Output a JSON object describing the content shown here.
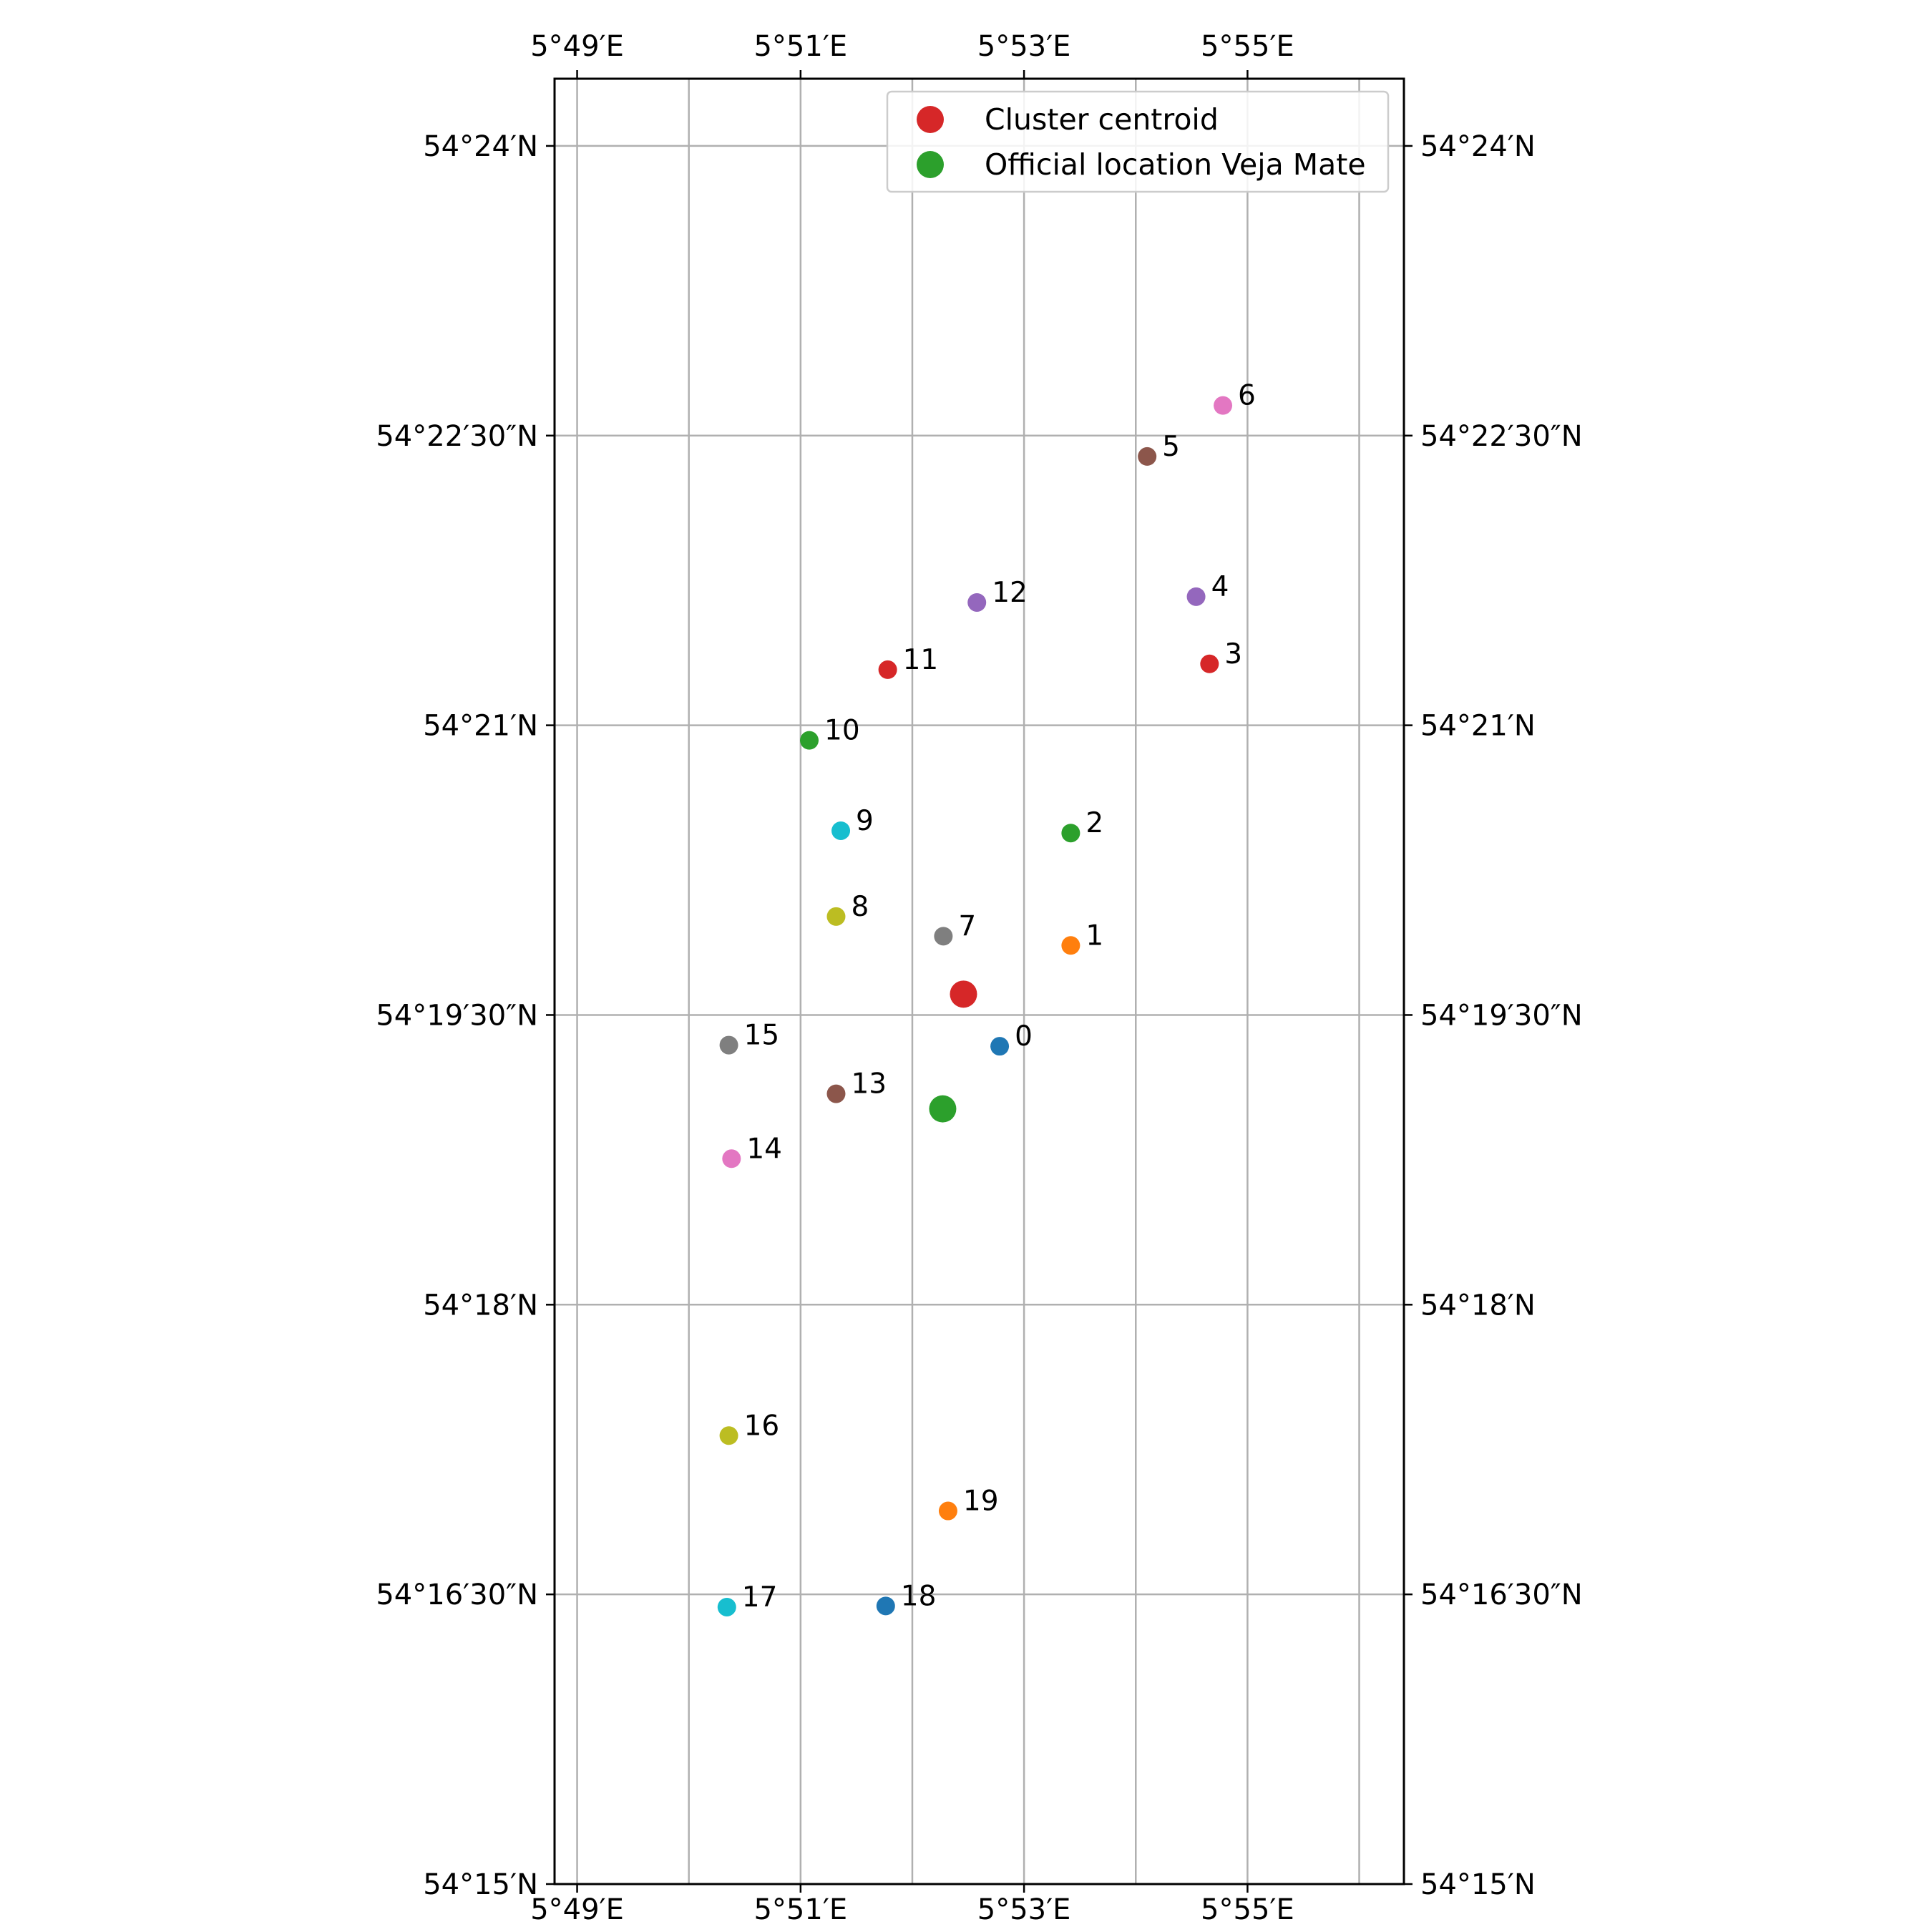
{
  "chart_data": {
    "type": "scatter",
    "x_axis": {
      "label": "",
      "range_deg": [
        5.8133,
        5.94
      ],
      "ticks": [
        {
          "value": 5.816667,
          "label": "5°49′E"
        },
        {
          "value": 5.85,
          "label": "5°51′E"
        },
        {
          "value": 5.883333,
          "label": "5°53′E"
        },
        {
          "value": 5.916667,
          "label": "5°55′E"
        }
      ],
      "minor_gridlines": [
        5.833333,
        5.866667,
        5.9,
        5.933333
      ]
    },
    "y_axis": {
      "label": "",
      "range_deg": [
        54.25,
        54.4058
      ],
      "ticks": [
        {
          "value": 54.25,
          "label": "54°15′N"
        },
        {
          "value": 54.275,
          "label": "54°16′30″N"
        },
        {
          "value": 54.3,
          "label": "54°18′N"
        },
        {
          "value": 54.325,
          "label": "54°19′30″N"
        },
        {
          "value": 54.35,
          "label": "54°21′N"
        },
        {
          "value": 54.375,
          "label": "54°22′30″N"
        },
        {
          "value": 54.4,
          "label": "54°24′N"
        }
      ]
    },
    "grid": true,
    "legend": {
      "position": "top-right",
      "entries": [
        {
          "label": "Cluster centroid",
          "color": "#d62728"
        },
        {
          "label": "Official location Veja Mate",
          "color": "#2ca02c"
        }
      ]
    },
    "points": [
      {
        "label": "0",
        "lon": 5.8797,
        "lat": 54.3223,
        "color": "#1f77b4"
      },
      {
        "label": "1",
        "lon": 5.8903,
        "lat": 54.331,
        "color": "#ff7f0e"
      },
      {
        "label": "2",
        "lon": 5.8903,
        "lat": 54.3407,
        "color": "#2ca02c"
      },
      {
        "label": "3",
        "lon": 5.911,
        "lat": 54.3553,
        "color": "#d62728"
      },
      {
        "label": "4",
        "lon": 5.909,
        "lat": 54.3611,
        "color": "#9467bd"
      },
      {
        "label": "5",
        "lon": 5.9017,
        "lat": 54.3732,
        "color": "#8c564b"
      },
      {
        "label": "6",
        "lon": 5.913,
        "lat": 54.3776,
        "color": "#e377c2"
      },
      {
        "label": "7",
        "lon": 5.8713,
        "lat": 54.3318,
        "color": "#7f7f7f"
      },
      {
        "label": "8",
        "lon": 5.8553,
        "lat": 54.3335,
        "color": "#bcbd22"
      },
      {
        "label": "9",
        "lon": 5.856,
        "lat": 54.3409,
        "color": "#17becf"
      },
      {
        "label": "10",
        "lon": 5.8513,
        "lat": 54.3487,
        "color": "#2ca02c"
      },
      {
        "label": "11",
        "lon": 5.863,
        "lat": 54.3548,
        "color": "#d62728"
      },
      {
        "label": "12",
        "lon": 5.8763,
        "lat": 54.3606,
        "color": "#9467bd"
      },
      {
        "label": "13",
        "lon": 5.8553,
        "lat": 54.3182,
        "color": "#8c564b"
      },
      {
        "label": "14",
        "lon": 5.8397,
        "lat": 54.3126,
        "color": "#e377c2"
      },
      {
        "label": "15",
        "lon": 5.8393,
        "lat": 54.3224,
        "color": "#7f7f7f"
      },
      {
        "label": "16",
        "lon": 5.8393,
        "lat": 54.2887,
        "color": "#bcbd22"
      },
      {
        "label": "17",
        "lon": 5.839,
        "lat": 54.2739,
        "color": "#17becf"
      },
      {
        "label": "18",
        "lon": 5.8627,
        "lat": 54.274,
        "color": "#1f77b4"
      },
      {
        "label": "19",
        "lon": 5.872,
        "lat": 54.2822,
        "color": "#ff7f0e"
      }
    ],
    "centroid": {
      "lon": 5.8743,
      "lat": 54.3268,
      "color": "#d62728"
    },
    "official_location": {
      "lon": 5.8712,
      "lat": 54.3169,
      "color": "#2ca02c"
    }
  }
}
